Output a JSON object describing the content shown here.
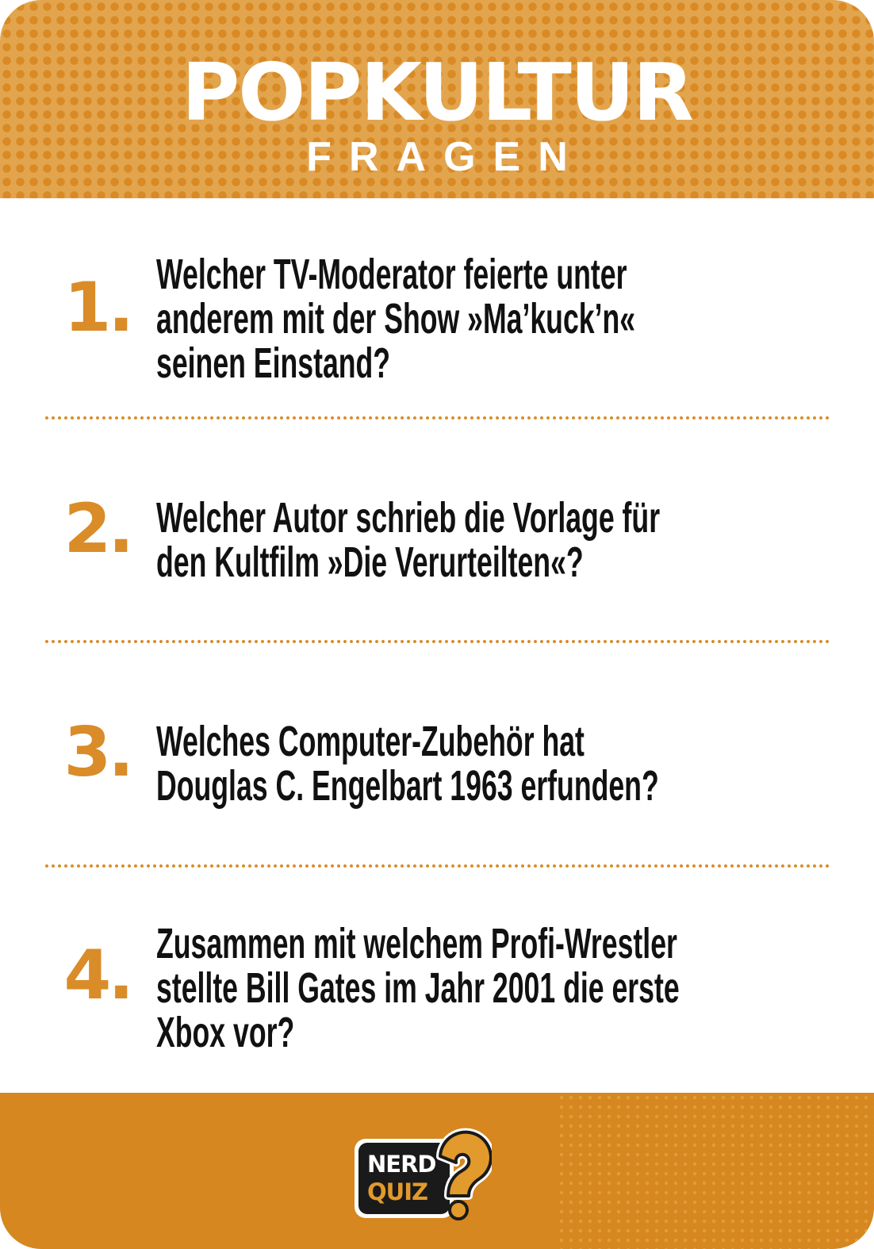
{
  "header": {
    "title": "POPKULTUR",
    "subtitle": "FRAGEN"
  },
  "questions": [
    {
      "number": "1.",
      "lines": [
        "Welcher TV-Moderator feierte unter",
        "anderem mit der Show »Ma’kuck’n«",
        "seinen Einstand?"
      ]
    },
    {
      "number": "2.",
      "lines": [
        "Welcher Autor schrieb die Vorlage für",
        "den Kultfilm »Die Verurteilten«?"
      ]
    },
    {
      "number": "3.",
      "lines": [
        "Welches Computer-Zubehör hat",
        "Douglas C. Engelbart 1963 erfunden?"
      ]
    },
    {
      "number": "4.",
      "lines": [
        "Zusammen mit welchem Profi-Wrestler",
        "stellte Bill Gates im Jahr 2001 die erste",
        "Xbox vor?"
      ]
    }
  ],
  "footer": {
    "logo_line1": "NERD",
    "logo_line2": "QUIZ"
  },
  "colors": {
    "accent": "#d98c28",
    "header_bg": "#e2a54e",
    "footer_bg": "#d6871f",
    "text": "#111111"
  }
}
